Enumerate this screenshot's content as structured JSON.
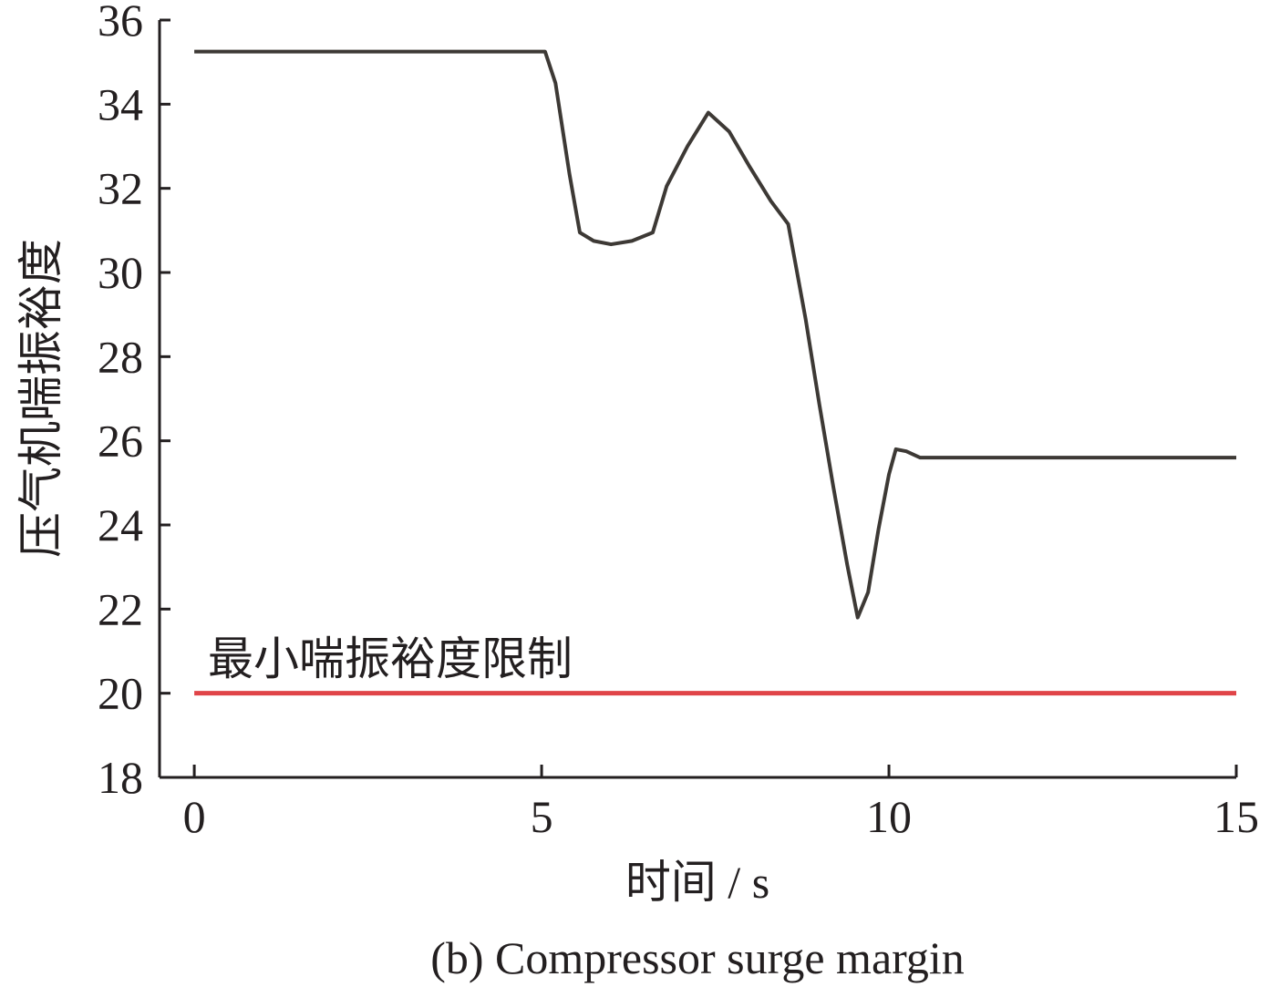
{
  "chart_data": {
    "type": "line",
    "x_label": "时间 / s",
    "y_label": "压气机喘振裕度",
    "caption": "(b) Compressor surge margin",
    "x": [
      0,
      5.05,
      5.2,
      5.4,
      5.55,
      5.75,
      6.0,
      6.3,
      6.6,
      6.8,
      7.1,
      7.4,
      7.7,
      8.0,
      8.3,
      8.55,
      8.8,
      9.0,
      9.2,
      9.4,
      9.55,
      9.7,
      9.85,
      10.0,
      10.1,
      10.25,
      10.45,
      15
    ],
    "series": [
      {
        "color": "#3d3935",
        "values": [
          35.25,
          35.25,
          34.5,
          32.35,
          30.95,
          30.75,
          30.67,
          30.75,
          30.95,
          32.05,
          33.0,
          33.8,
          33.35,
          32.5,
          31.7,
          31.15,
          28.9,
          26.85,
          24.9,
          23.05,
          21.8,
          22.4,
          23.9,
          25.2,
          25.8,
          25.75,
          25.6,
          25.6
        ]
      }
    ],
    "reference_line": {
      "value": 20,
      "x": [
        0,
        15
      ],
      "color": "#e04448",
      "label": "最小喘振裕度限制"
    },
    "xlim": [
      -0.5,
      15
    ],
    "xticks": [
      0,
      5,
      10,
      15
    ],
    "ylim": [
      18,
      36
    ],
    "yticks": [
      18,
      20,
      22,
      24,
      26,
      28,
      30,
      32,
      34,
      36
    ],
    "grid": false
  }
}
